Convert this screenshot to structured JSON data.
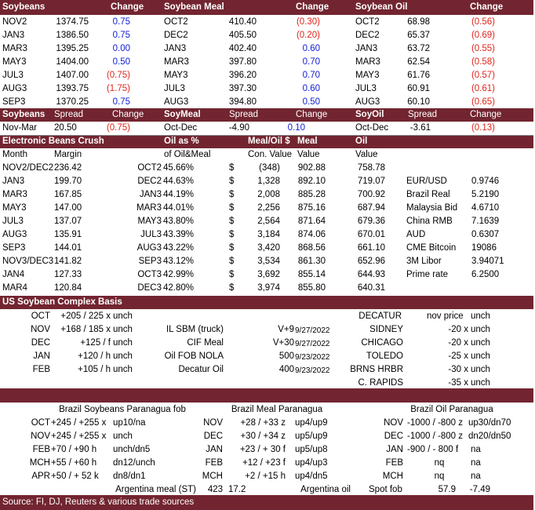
{
  "top_header": [
    "Soybeans",
    "Change",
    "Soybean Meal",
    "Change",
    "Soybean Oil",
    "Change"
  ],
  "soybeans": [
    [
      "NOV2",
      "1374.75",
      "0.75"
    ],
    [
      "JAN3",
      "1386.50",
      "0.75"
    ],
    [
      "MAR3",
      "1395.25",
      "0.00"
    ],
    [
      "MAY3",
      "1404.00",
      "0.50"
    ],
    [
      "JUL3",
      "1407.00",
      "(0.75)"
    ],
    [
      "AUG3",
      "1393.75",
      "(1.75)"
    ],
    [
      "SEP3",
      "1370.25",
      "0.75"
    ]
  ],
  "soymeal": [
    [
      "OCT2",
      "410.40",
      "(0.30)"
    ],
    [
      "DEC2",
      "405.50",
      "(0.20)"
    ],
    [
      "JAN3",
      "402.40",
      "0.60"
    ],
    [
      "MAR3",
      "397.80",
      "0.70"
    ],
    [
      "MAY3",
      "396.20",
      "0.70"
    ],
    [
      "JUL3",
      "397.30",
      "0.60"
    ],
    [
      "AUG3",
      "394.80",
      "0.50"
    ]
  ],
  "soyoil": [
    [
      "OCT2",
      "68.98",
      "(0.56)"
    ],
    [
      "DEC2",
      "65.37",
      "(0.69)"
    ],
    [
      "JAN3",
      "63.72",
      "(0.55)"
    ],
    [
      "MAR3",
      "62.54",
      "(0.58)"
    ],
    [
      "MAY3",
      "61.76",
      "(0.57)"
    ],
    [
      "JUL3",
      "60.91",
      "(0.61)"
    ],
    [
      "AUG3",
      "60.10",
      "(0.65)"
    ]
  ],
  "spread_header": [
    "Soybeans",
    "Spread",
    "Change",
    "SoyMeal",
    "Spread",
    "Change",
    "SoyOil",
    "Spread",
    "Change"
  ],
  "spread_row": [
    "Nov-Mar",
    "20.50",
    "(0.75)",
    "Oct-Dec",
    "-4.90",
    "0.10",
    "Oct-Dec",
    "-3.61",
    "(0.13)"
  ],
  "crush_header": {
    "title": "Electronic Beans Crush",
    "oil_pct": "Oil as %",
    "meal_oil": "Meal/Oil $",
    "meal": "Meal",
    "oil": "Oil"
  },
  "crush_sub": {
    "month": "Month",
    "margin": "Margin",
    "of": "of Oil&Meal",
    "con": "Con. Value",
    "value1": "Value",
    "value2": "Value"
  },
  "crush": [
    [
      "NOV2/DEC2",
      "236.42",
      "OCT2",
      "45.66%",
      "$",
      "(348)",
      "902.88",
      "758.78"
    ],
    [
      "JAN3",
      "199.70",
      "DEC2",
      "44.63%",
      "$",
      "1,328",
      "892.10",
      "719.07"
    ],
    [
      "MAR3",
      "167.85",
      "JAN3",
      "44.19%",
      "$",
      "2,008",
      "885.28",
      "700.92"
    ],
    [
      "MAY3",
      "147.00",
      "MAR3",
      "44.01%",
      "$",
      "2,256",
      "875.16",
      "687.94"
    ],
    [
      "JUL3",
      "137.07",
      "MAY3",
      "43.80%",
      "$",
      "2,564",
      "871.64",
      "679.36"
    ],
    [
      "AUG3",
      "135.91",
      "JUL3",
      "43.39%",
      "$",
      "3,184",
      "874.06",
      "670.01"
    ],
    [
      "SEP3",
      "144.01",
      "AUG3",
      "43.22%",
      "$",
      "3,420",
      "868.56",
      "661.10"
    ],
    [
      "NOV3/DEC3",
      "141.82",
      "SEP3",
      "43.12%",
      "$",
      "3,534",
      "861.30",
      "652.96"
    ],
    [
      "JAN4",
      "127.33",
      "OCT3",
      "42.99%",
      "$",
      "3,692",
      "855.14",
      "644.93"
    ],
    [
      "MAR4",
      "120.84",
      "DEC3",
      "42.80%",
      "$",
      "3,974",
      "855.80",
      "640.31"
    ]
  ],
  "markets": [
    [
      "EUR/USD",
      "0.9746"
    ],
    [
      "Brazil Real",
      "5.2190"
    ],
    [
      "Malaysia Bid",
      "4.6710"
    ],
    [
      "China RMB",
      "7.1639"
    ],
    [
      "AUD",
      "0.6307"
    ],
    [
      "CME Bitcoin",
      "19086"
    ],
    [
      "3M Libor",
      "3.94071"
    ],
    [
      "Prime rate",
      "6.2500"
    ]
  ],
  "basis_title": "US Soybean Complex Basis",
  "basis_left": [
    [
      "OCT",
      "+205 / 225 x",
      "unch"
    ],
    [
      "NOV",
      "+168  / 185 x",
      "unch"
    ],
    [
      "DEC",
      "+125  / f",
      "unch"
    ],
    [
      "JAN",
      "+120 / h",
      "unch"
    ],
    [
      "FEB",
      "+105 / h",
      "unch"
    ]
  ],
  "basis_mid": [
    [
      "IL SBM (truck)",
      "V+9",
      "9/27/2022"
    ],
    [
      "CIF Meal",
      "V+30",
      "9/27/2022"
    ],
    [
      "Oil FOB NOLA",
      "500",
      "9/23/2022"
    ],
    [
      "Decatur Oil",
      "400",
      "9/23/2022"
    ]
  ],
  "basis_right_header": [
    "DECATUR",
    "nov price",
    "unch"
  ],
  "basis_right": [
    [
      "SIDNEY",
      "-20 x",
      "unch"
    ],
    [
      "CHICAGO",
      "-20 x",
      "unch"
    ],
    [
      "TOLEDO",
      "-25 x",
      "unch"
    ],
    [
      "BRNS HRBR",
      "-30 x",
      "unch"
    ],
    [
      "C. RAPIDS",
      "-35 x",
      "unch"
    ]
  ],
  "brazil_titles": [
    "Brazil Soybeans Paranagua fob",
    "Brazil Meal Paranagua",
    "Brazil Oil Paranagua"
  ],
  "brazil_soy": [
    [
      "OCT",
      "+245 / +255 x",
      "up10/na"
    ],
    [
      "NOV",
      "+245 / +255 x",
      "unch"
    ],
    [
      "FEB",
      "+70 / +90 h",
      "unch/dn5"
    ],
    [
      "MCH",
      "+55 / +60 h",
      "dn12/unch"
    ],
    [
      "APR",
      "+50 / + 52 k",
      "dn8/dn1"
    ]
  ],
  "brazil_meal": [
    [
      "NOV",
      "+28 / +33 z",
      "up4/up9"
    ],
    [
      "DEC",
      "+30 / +34 z",
      "up5/up9"
    ],
    [
      "JAN",
      "+23 / + 30 f",
      "up5/up8"
    ],
    [
      "FEB",
      "+12 / +23 f",
      "up4/up3"
    ],
    [
      "MCH",
      "+2 / +15 h",
      "up4/dn5"
    ]
  ],
  "brazil_oil": [
    [
      "NOV",
      "-1000 / -800 z",
      "up30/dn70"
    ],
    [
      "DEC",
      "-1000 / -800 z",
      "dn20/dn50"
    ],
    [
      "JAN",
      "-900 / - 800 f",
      "na"
    ],
    [
      "FEB",
      "nq",
      "na"
    ],
    [
      "MCH",
      "nq",
      "na"
    ]
  ],
  "argentina": {
    "meal_label": "Argentina meal (ST)",
    "meal_val": "423",
    "meal_chg": "17.2",
    "oil_label": "Argentina oil",
    "oil_spot": "Spot fob",
    "oil_val": "57.9",
    "oil_chg": "-7.49"
  },
  "source": "Source: FI, DJ, Reuters & various trade sources",
  "colors": {
    "header_bar": "#722530",
    "negative": "#e0251b",
    "positive": "#0f1cd6"
  }
}
